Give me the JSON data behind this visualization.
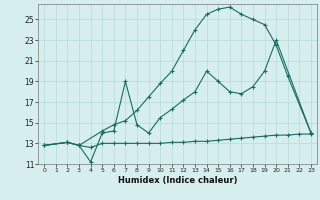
{
  "xlabel": "Humidex (Indice chaleur)",
  "bg_color": "#d6efee",
  "grid_color": "#b5dbd8",
  "line_color": "#1a6b5e",
  "xlim": [
    -0.5,
    23.5
  ],
  "ylim": [
    11,
    26.5
  ],
  "xticks": [
    0,
    1,
    2,
    3,
    4,
    5,
    6,
    7,
    8,
    9,
    10,
    11,
    12,
    13,
    14,
    15,
    16,
    17,
    18,
    19,
    20,
    21,
    22,
    23
  ],
  "yticks": [
    11,
    13,
    15,
    17,
    19,
    21,
    23,
    25
  ],
  "line1_x": [
    0,
    2,
    3,
    4,
    5,
    6,
    7,
    8,
    9,
    10,
    11,
    12,
    13,
    14,
    15,
    16,
    17,
    18,
    19,
    20,
    21,
    22,
    23
  ],
  "line1_y": [
    12.8,
    13.1,
    12.8,
    12.6,
    13.0,
    13.0,
    13.0,
    13.0,
    13.0,
    13.0,
    13.1,
    13.1,
    13.2,
    13.2,
    13.3,
    13.4,
    13.5,
    13.6,
    13.7,
    13.8,
    13.8,
    13.9,
    13.9
  ],
  "line2_x": [
    0,
    2,
    3,
    4,
    5,
    6,
    7,
    8,
    9,
    10,
    11,
    12,
    13,
    14,
    15,
    16,
    17,
    18,
    19,
    20,
    23
  ],
  "line2_y": [
    12.8,
    13.1,
    12.8,
    11.2,
    14.0,
    14.2,
    19.0,
    14.8,
    14.0,
    15.5,
    16.3,
    17.2,
    18.0,
    20.0,
    19.0,
    18.0,
    17.8,
    18.5,
    20.0,
    23.0,
    14.0
  ],
  "line3_x": [
    0,
    2,
    3,
    5,
    6,
    7,
    8,
    9,
    10,
    11,
    12,
    13,
    14,
    15,
    16,
    17,
    18,
    19,
    20,
    21,
    23
  ],
  "line3_y": [
    12.8,
    13.1,
    12.8,
    14.2,
    14.8,
    15.2,
    16.2,
    17.5,
    18.8,
    20.0,
    22.0,
    24.0,
    25.5,
    26.0,
    26.2,
    25.5,
    25.0,
    24.5,
    22.5,
    19.5,
    14.0
  ]
}
